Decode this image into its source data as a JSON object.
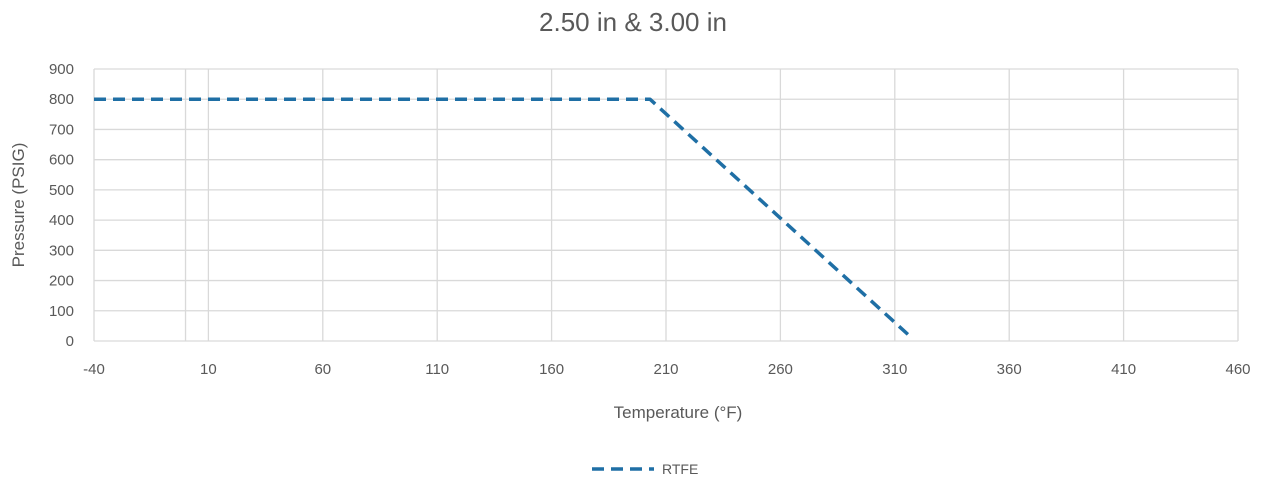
{
  "chart_data": {
    "type": "line",
    "title": "2.50 in & 3.00 in",
    "xlabel": "Temperature (°F)",
    "ylabel": "Pressure (PSIG)",
    "xlim": [
      -40,
      460
    ],
    "ylim": [
      0,
      900
    ],
    "x_ticks": [
      -40,
      10,
      60,
      110,
      160,
      210,
      260,
      310,
      360,
      410,
      460
    ],
    "y_ticks": [
      0,
      100,
      200,
      300,
      400,
      500,
      600,
      700,
      800,
      900
    ],
    "grid": true,
    "legend_position": "bottom",
    "reference_line_x": 0,
    "series": [
      {
        "name": "RTFE",
        "color": "#1f6fa5",
        "line_style": "dashed",
        "x": [
          -40,
          203,
          316
        ],
        "y": [
          800,
          800,
          20
        ]
      }
    ]
  }
}
